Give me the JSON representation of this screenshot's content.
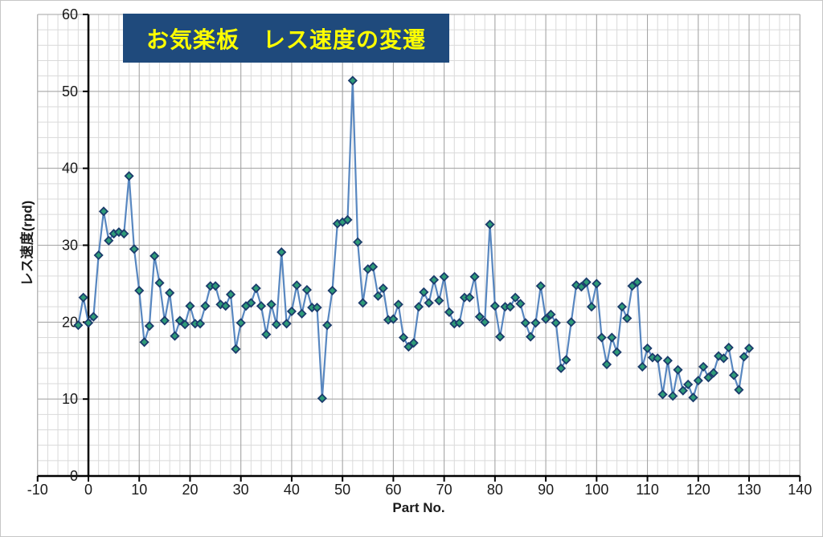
{
  "chart": {
    "title": "お気楽板　レス速度の変遷",
    "x_axis_title": "Part No.",
    "y_axis_title": "レス速度(rpd)"
  },
  "chart_data": {
    "type": "line",
    "title": "お気楽板　レス速度の変遷",
    "xlabel": "Part No.",
    "ylabel": "レス速度(rpd)",
    "xlim": [
      -10,
      140
    ],
    "ylim": [
      0,
      60
    ],
    "x_ticks": [
      -10,
      0,
      10,
      20,
      30,
      40,
      50,
      60,
      70,
      80,
      90,
      100,
      110,
      120,
      130,
      140
    ],
    "y_ticks": [
      0,
      10,
      20,
      30,
      40,
      50,
      60
    ],
    "minor_grid_step_x": 2,
    "minor_grid_step_y": 2,
    "grid": true,
    "legend": false,
    "marker": "diamond",
    "series": [
      {
        "name": "レス速度",
        "x": [
          -2,
          -1,
          0,
          1,
          2,
          3,
          4,
          5,
          6,
          7,
          8,
          9,
          10,
          11,
          12,
          13,
          14,
          15,
          16,
          17,
          18,
          19,
          20,
          21,
          22,
          23,
          24,
          25,
          26,
          27,
          28,
          29,
          30,
          31,
          32,
          33,
          34,
          35,
          36,
          37,
          38,
          39,
          40,
          41,
          42,
          43,
          44,
          45,
          46,
          47,
          48,
          49,
          50,
          51,
          52,
          53,
          54,
          55,
          56,
          57,
          58,
          59,
          60,
          61,
          62,
          63,
          64,
          65,
          66,
          67,
          68,
          69,
          70,
          71,
          72,
          73,
          74,
          75,
          76,
          77,
          78,
          79,
          80,
          81,
          82,
          83,
          84,
          85,
          86,
          87,
          88,
          89,
          90,
          91,
          92,
          93,
          94,
          95,
          96,
          97,
          98,
          99,
          100,
          101,
          102,
          103,
          104,
          105,
          106,
          107,
          108,
          109,
          110,
          111,
          112,
          113,
          114,
          115,
          116,
          117,
          118,
          119,
          120,
          121,
          122,
          123,
          124,
          125,
          126,
          127,
          128,
          129,
          130
        ],
        "values": [
          19.6,
          23.2,
          19.9,
          20.7,
          28.7,
          34.4,
          30.6,
          31.5,
          31.7,
          31.5,
          39.0,
          29.5,
          24.1,
          17.4,
          19.5,
          28.6,
          25.1,
          20.2,
          23.8,
          18.2,
          20.2,
          19.7,
          22.1,
          19.8,
          19.8,
          22.1,
          24.7,
          24.7,
          22.3,
          22.1,
          23.6,
          16.5,
          19.9,
          22.1,
          22.5,
          24.4,
          22.1,
          18.4,
          22.3,
          19.7,
          29.1,
          19.8,
          21.4,
          24.8,
          21.1,
          24.2,
          21.9,
          21.9,
          10.1,
          19.6,
          24.1,
          32.8,
          33.0,
          33.3,
          51.4,
          30.4,
          22.5,
          26.9,
          27.2,
          23.4,
          24.4,
          20.3,
          20.4,
          22.3,
          18.0,
          16.8,
          17.3,
          22.0,
          23.9,
          22.5,
          25.5,
          22.8,
          25.9,
          21.3,
          19.8,
          19.9,
          23.2,
          23.2,
          25.9,
          20.7,
          20.0,
          32.7,
          22.1,
          18.1,
          22.0,
          22.0,
          23.2,
          22.4,
          19.9,
          18.1,
          19.9,
          24.7,
          20.4,
          21.0,
          19.9,
          14.0,
          15.1,
          20.0,
          24.8,
          24.6,
          25.2,
          22.0,
          25.0,
          18.0,
          14.5,
          18.0,
          16.1,
          22.0,
          20.5,
          24.7,
          25.2,
          14.2,
          16.6,
          15.4,
          15.3,
          10.6,
          15.0,
          10.4,
          13.8,
          11.1,
          11.9,
          10.2,
          12.4,
          14.2,
          12.8,
          13.4,
          15.6,
          15.3,
          16.7,
          13.1,
          11.2,
          15.5,
          16.6
        ]
      }
    ],
    "colors": {
      "line": "#4F81BD",
      "marker_fill": "#2E9B78",
      "marker_border": "#1B3B6B",
      "title_bg": "#1F4A7C",
      "title_fg": "#FFFF00",
      "grid_minor": "#DADADA",
      "grid_major": "#A3A3A3",
      "axis": "#000000",
      "tick_label": "#1A1A1A"
    }
  }
}
